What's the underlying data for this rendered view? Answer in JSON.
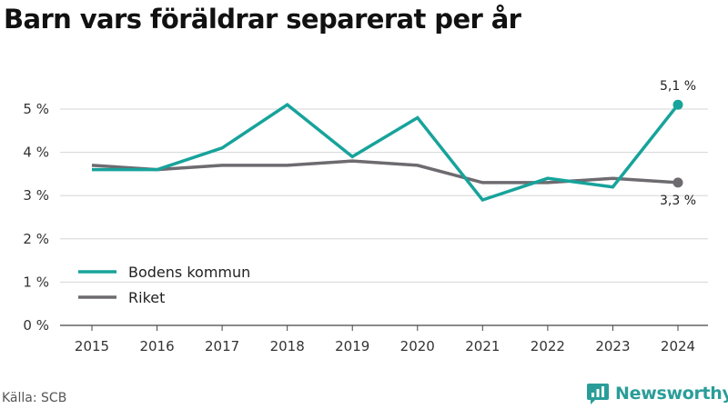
{
  "title": "Barn vars föräldrar separerat per år",
  "source": "Källa: SCB",
  "brand": {
    "name": "Newsworthy",
    "icon": "newsworthy-logo-icon"
  },
  "chart_data": {
    "type": "line",
    "title": "Barn vars föräldrar separerat per år",
    "x": [
      "2015",
      "2016",
      "2017",
      "2018",
      "2019",
      "2020",
      "2021",
      "2022",
      "2023",
      "2024"
    ],
    "ylim": [
      0,
      5
    ],
    "yticks": [
      "0 %",
      "1 %",
      "2 %",
      "3 %",
      "4 %",
      "5 %"
    ],
    "grid": true,
    "legend_position": "bottom-left",
    "series": [
      {
        "name": "Bodens kommun",
        "color": "#17a39b",
        "values": [
          3.6,
          3.6,
          4.1,
          5.1,
          3.9,
          4.8,
          2.9,
          3.4,
          3.2,
          5.1
        ],
        "end_label": "5,1 %"
      },
      {
        "name": "Riket",
        "color": "#6d6b70",
        "values": [
          3.7,
          3.6,
          3.7,
          3.7,
          3.8,
          3.7,
          3.3,
          3.3,
          3.4,
          3.3
        ],
        "end_label": "3,3 %"
      }
    ]
  }
}
